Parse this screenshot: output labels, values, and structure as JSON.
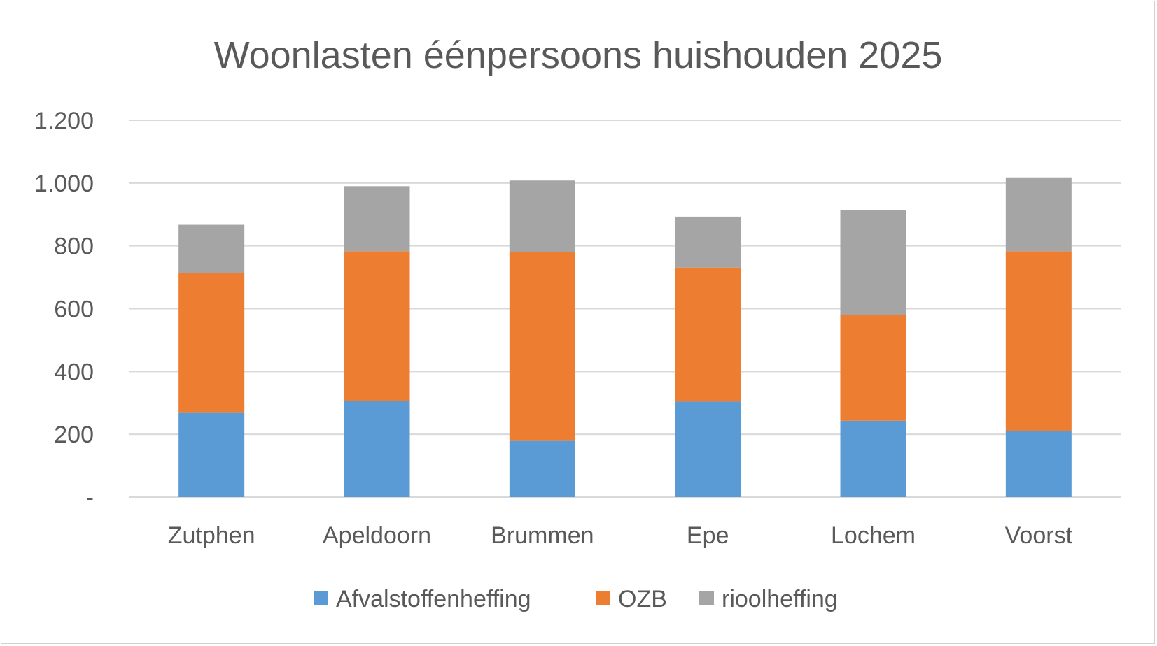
{
  "chart_data": {
    "type": "bar",
    "stacked": true,
    "title": "Woonlasten éénpersoons huishouden 2025",
    "xlabel": "",
    "ylabel": "",
    "categories": [
      "Zutphen",
      "Apeldoorn",
      "Brummen",
      "Epe",
      "Lochem",
      "Voorst"
    ],
    "series": [
      {
        "name": "Afvalstoffenheffing",
        "color": "#5b9bd5",
        "values": [
          268,
          306,
          179,
          304,
          243,
          210
        ]
      },
      {
        "name": "OZB",
        "color": "#ed7d31",
        "values": [
          445,
          477,
          602,
          427,
          338,
          573
        ]
      },
      {
        "name": "rioolheffing",
        "color": "#a5a5a5",
        "values": [
          154,
          207,
          227,
          162,
          333,
          235
        ]
      }
    ],
    "ylim": [
      0,
      1200
    ],
    "yticks": [
      0,
      200,
      400,
      600,
      800,
      1000,
      1200
    ],
    "ytick_labels": [
      "-",
      "200",
      "400",
      "600",
      "800",
      "1.000",
      "1.200"
    ],
    "grid": true,
    "legend_position": "bottom"
  }
}
